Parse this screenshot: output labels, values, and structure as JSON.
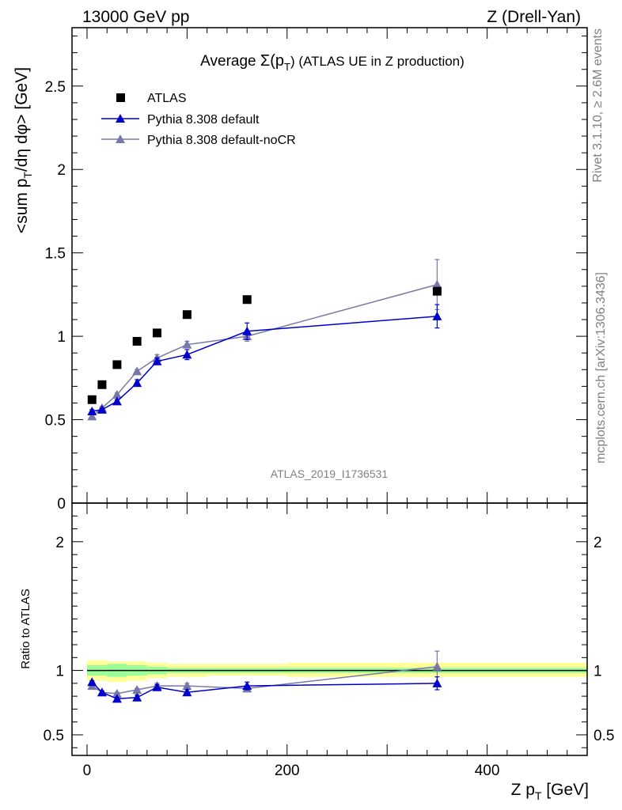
{
  "header": {
    "left": "13000 GeV pp",
    "right": "Z (Drell-Yan)",
    "side_top": "Rivet 3.1.10, ≥ 2.6M events",
    "side_bottom": "mcplots.cern.ch [arXiv:1306.3436]",
    "analysis": "ATLAS_2019_I1736531"
  },
  "chart_data": [
    {
      "type": "scatter",
      "panel": "main",
      "title_prefix": "Average ",
      "title_sigma": "Σ(p",
      "title_sub": "T",
      "title_suffix": ") (ATLAS UE in Z production)",
      "ylabel": "<sum p_T/dη dφ> [GeV]",
      "xlim": [
        -15,
        500
      ],
      "ylim": [
        0,
        2.85
      ],
      "yticks": [
        0,
        0.5,
        1,
        1.5,
        2,
        2.5
      ],
      "ytick_labels": [
        "0",
        "0.5",
        "1",
        "1.5",
        "2",
        "2.5"
      ],
      "legend_placement": "top-left",
      "series": [
        {
          "name": "ATLAS",
          "color": "#000000",
          "marker": "square",
          "x": [
            5,
            15,
            30,
            50,
            70,
            100,
            160,
            350
          ],
          "y": [
            0.62,
            0.71,
            0.83,
            0.97,
            1.02,
            1.13,
            1.22,
            1.27
          ]
        },
        {
          "name": "Pythia 8.308 default",
          "color": "#0000cc",
          "marker": "triangle",
          "x": [
            5,
            15,
            30,
            50,
            70,
            100,
            160,
            350
          ],
          "y": [
            0.55,
            0.56,
            0.61,
            0.72,
            0.85,
            0.89,
            1.03,
            1.12
          ],
          "err": [
            0.01,
            0.01,
            0.01,
            0.02,
            0.02,
            0.03,
            0.05,
            0.07
          ]
        },
        {
          "name": "Pythia 8.308 default-noCR",
          "color": "#7878a8",
          "marker": "triangle",
          "x": [
            5,
            15,
            30,
            50,
            70,
            100,
            160,
            350
          ],
          "y": [
            0.52,
            0.57,
            0.65,
            0.79,
            0.87,
            0.95,
            1.0,
            1.31
          ],
          "err": [
            0.01,
            0.01,
            0.01,
            0.01,
            0.02,
            0.02,
            0.03,
            0.15
          ]
        }
      ]
    },
    {
      "type": "scatter",
      "panel": "ratio",
      "ylabel": "Ratio to ATLAS",
      "xlabel": "Z p_T [GeV]",
      "xlim": [
        -15,
        500
      ],
      "ylim": [
        0.34,
        2.3
      ],
      "yticks": [
        0.5,
        1,
        2
      ],
      "ytick_labels": [
        "0.5",
        "1",
        "2"
      ],
      "xticks": [
        0,
        200,
        400
      ],
      "xtick_labels": [
        "0",
        "200",
        "400"
      ],
      "bands": {
        "edges": [
          0,
          10,
          20,
          40,
          60,
          80,
          120,
          200,
          500
        ],
        "inner": [
          [
            0.96,
            1.04
          ],
          [
            0.96,
            1.04
          ],
          [
            0.95,
            1.05
          ],
          [
            0.96,
            1.04
          ],
          [
            0.97,
            1.03
          ],
          [
            0.98,
            1.02
          ],
          [
            0.98,
            1.02
          ],
          [
            0.98,
            1.02
          ]
        ],
        "outer": [
          [
            0.92,
            1.08
          ],
          [
            0.92,
            1.08
          ],
          [
            0.91,
            1.07
          ],
          [
            0.92,
            1.07
          ],
          [
            0.94,
            1.06
          ],
          [
            0.95,
            1.05
          ],
          [
            0.96,
            1.05
          ],
          [
            0.95,
            1.06
          ]
        ],
        "inner_color": "#99ff99",
        "outer_color": "#ffff99"
      },
      "series": [
        {
          "name": "Pythia 8.308 default",
          "color": "#0000cc",
          "x": [
            5,
            15,
            30,
            50,
            70,
            100,
            160,
            350
          ],
          "y": [
            0.91,
            0.83,
            0.78,
            0.79,
            0.87,
            0.83,
            0.88,
            0.9
          ],
          "err": [
            0.01,
            0.01,
            0.01,
            0.02,
            0.02,
            0.02,
            0.03,
            0.05
          ]
        },
        {
          "name": "Pythia 8.308 default-noCR",
          "color": "#7878a8",
          "x": [
            5,
            15,
            30,
            50,
            70,
            100,
            160,
            350
          ],
          "y": [
            0.88,
            0.83,
            0.82,
            0.85,
            0.88,
            0.88,
            0.86,
            1.03
          ],
          "err": [
            0.01,
            0.01,
            0.01,
            0.01,
            0.02,
            0.02,
            0.02,
            0.12
          ]
        }
      ]
    }
  ]
}
